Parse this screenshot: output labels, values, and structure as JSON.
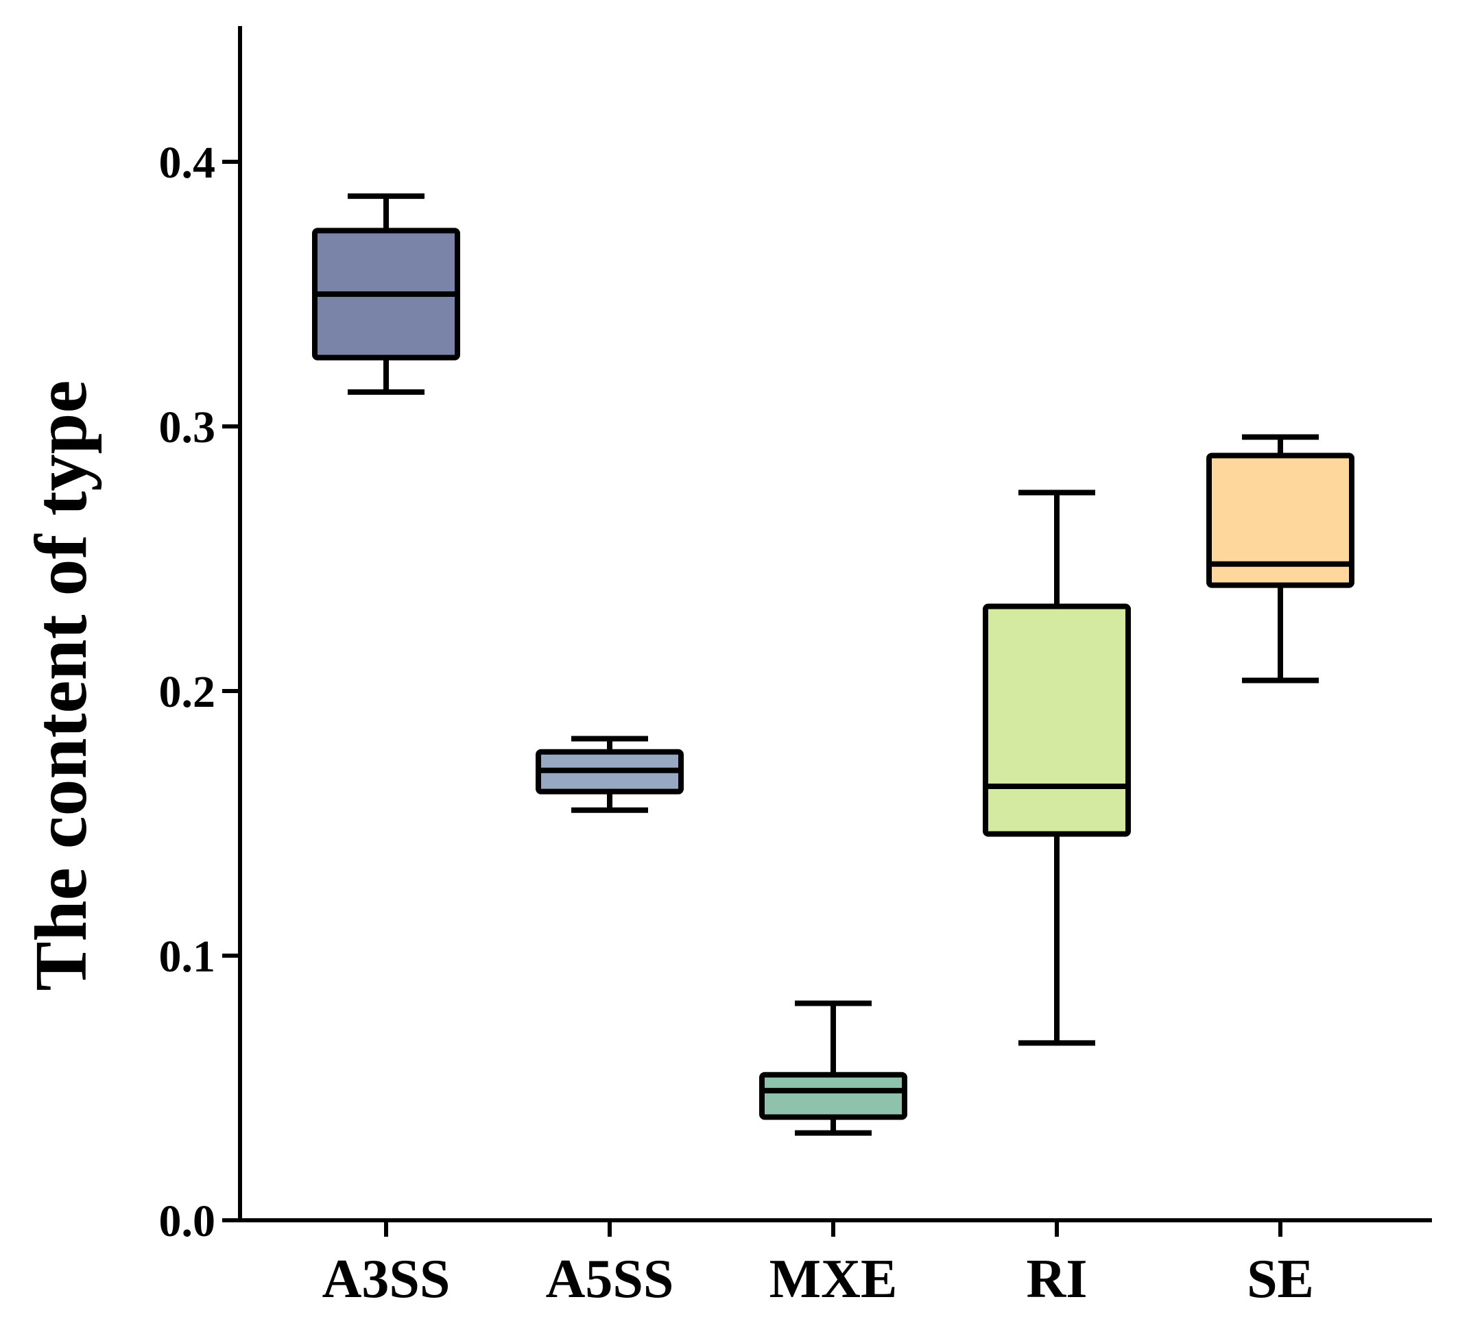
{
  "chart_data": {
    "type": "boxplot",
    "title": "",
    "xlabel": "",
    "ylabel": "The content of type",
    "ylim": [
      0.0,
      0.45
    ],
    "yticks": [
      0.0,
      0.1,
      0.2,
      0.3,
      0.4
    ],
    "ytick_labels": [
      "0.0",
      "0.1",
      "0.2",
      "0.3",
      "0.4"
    ],
    "categories": [
      "A3SS",
      "A5SS",
      "MXE",
      "RI",
      "SE"
    ],
    "boxes": [
      {
        "label": "A3SS",
        "whisker_low": 0.313,
        "q1": 0.326,
        "median": 0.35,
        "q3": 0.374,
        "whisker_high": 0.387,
        "color": "#7a83a8"
      },
      {
        "label": "A5SS",
        "whisker_low": 0.155,
        "q1": 0.162,
        "median": 0.17,
        "q3": 0.177,
        "whisker_high": 0.182,
        "color": "#97a9c2"
      },
      {
        "label": "MXE",
        "whisker_low": 0.033,
        "q1": 0.039,
        "median": 0.049,
        "q3": 0.055,
        "whisker_high": 0.082,
        "color": "#8fc2ad"
      },
      {
        "label": "RI",
        "whisker_low": 0.067,
        "q1": 0.146,
        "median": 0.164,
        "q3": 0.232,
        "whisker_high": 0.275,
        "color": "#d4eaa0"
      },
      {
        "label": "SE",
        "whisker_low": 0.204,
        "q1": 0.24,
        "median": 0.248,
        "q3": 0.289,
        "whisker_high": 0.296,
        "color": "#fed79c"
      }
    ],
    "grid": false,
    "legend": "none"
  }
}
